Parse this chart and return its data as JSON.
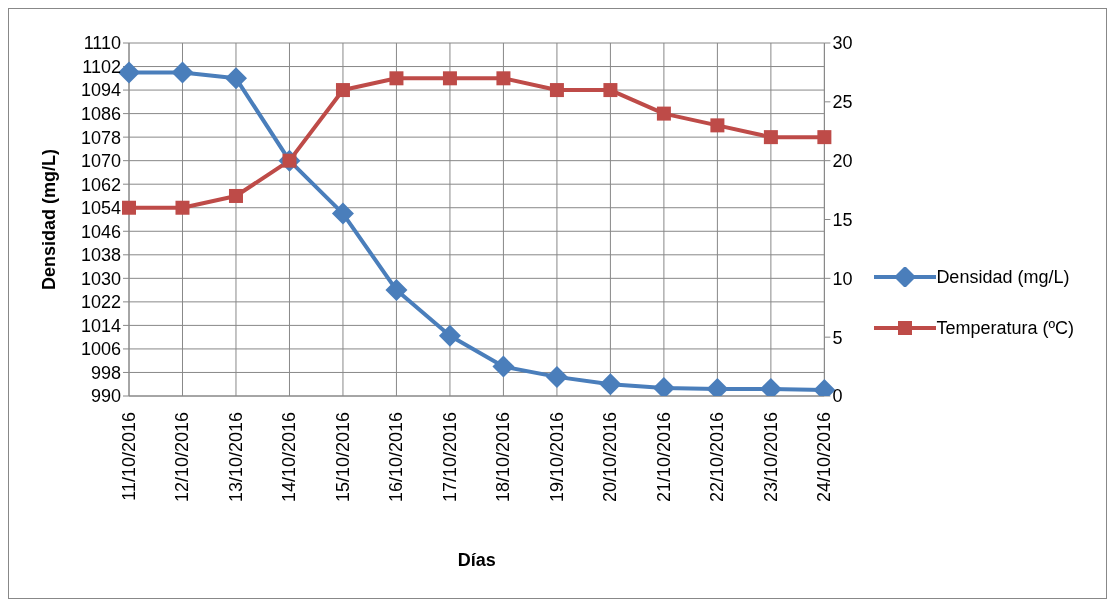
{
  "chart_data": {
    "type": "line",
    "xlabel": "Días",
    "ylabel": "Densidad (mg/L)",
    "categories": [
      "11/10/2016",
      "12/10/2016",
      "13/10/2016",
      "14/10/2016",
      "15/10/2016",
      "16/10/2016",
      "17/10/2016",
      "18/10/2016",
      "19/10/2016",
      "20/10/2016",
      "21/10/2016",
      "22/10/2016",
      "23/10/2016",
      "24/10/2016"
    ],
    "series": [
      {
        "name": "Densidad (mg/L)",
        "color": "#4a7ebb",
        "marker": "diamond",
        "values": [
          1100,
          1100,
          1098,
          1070,
          1052,
          1026,
          1010.5,
          1000,
          996.5,
          994,
          992.7,
          992.4,
          992.4,
          992
        ]
      },
      {
        "name": "Temperatura (ºC)",
        "color": "#be4b48",
        "marker": "square",
        "axis": "y2",
        "values": [
          16,
          16,
          17,
          20,
          26,
          27,
          27,
          27,
          26,
          26,
          24,
          23,
          22,
          22
        ]
      }
    ],
    "ylim": [
      990,
      1110
    ],
    "yticks": [
      990,
      998,
      1006,
      1014,
      1022,
      1030,
      1038,
      1046,
      1054,
      1062,
      1070,
      1078,
      1086,
      1094,
      1102,
      1110
    ],
    "y2lim": [
      0,
      30
    ],
    "y2ticks": [
      0,
      5,
      10,
      15,
      20,
      25,
      30
    ],
    "grid": true,
    "legend": "right",
    "line_style": "solid"
  }
}
